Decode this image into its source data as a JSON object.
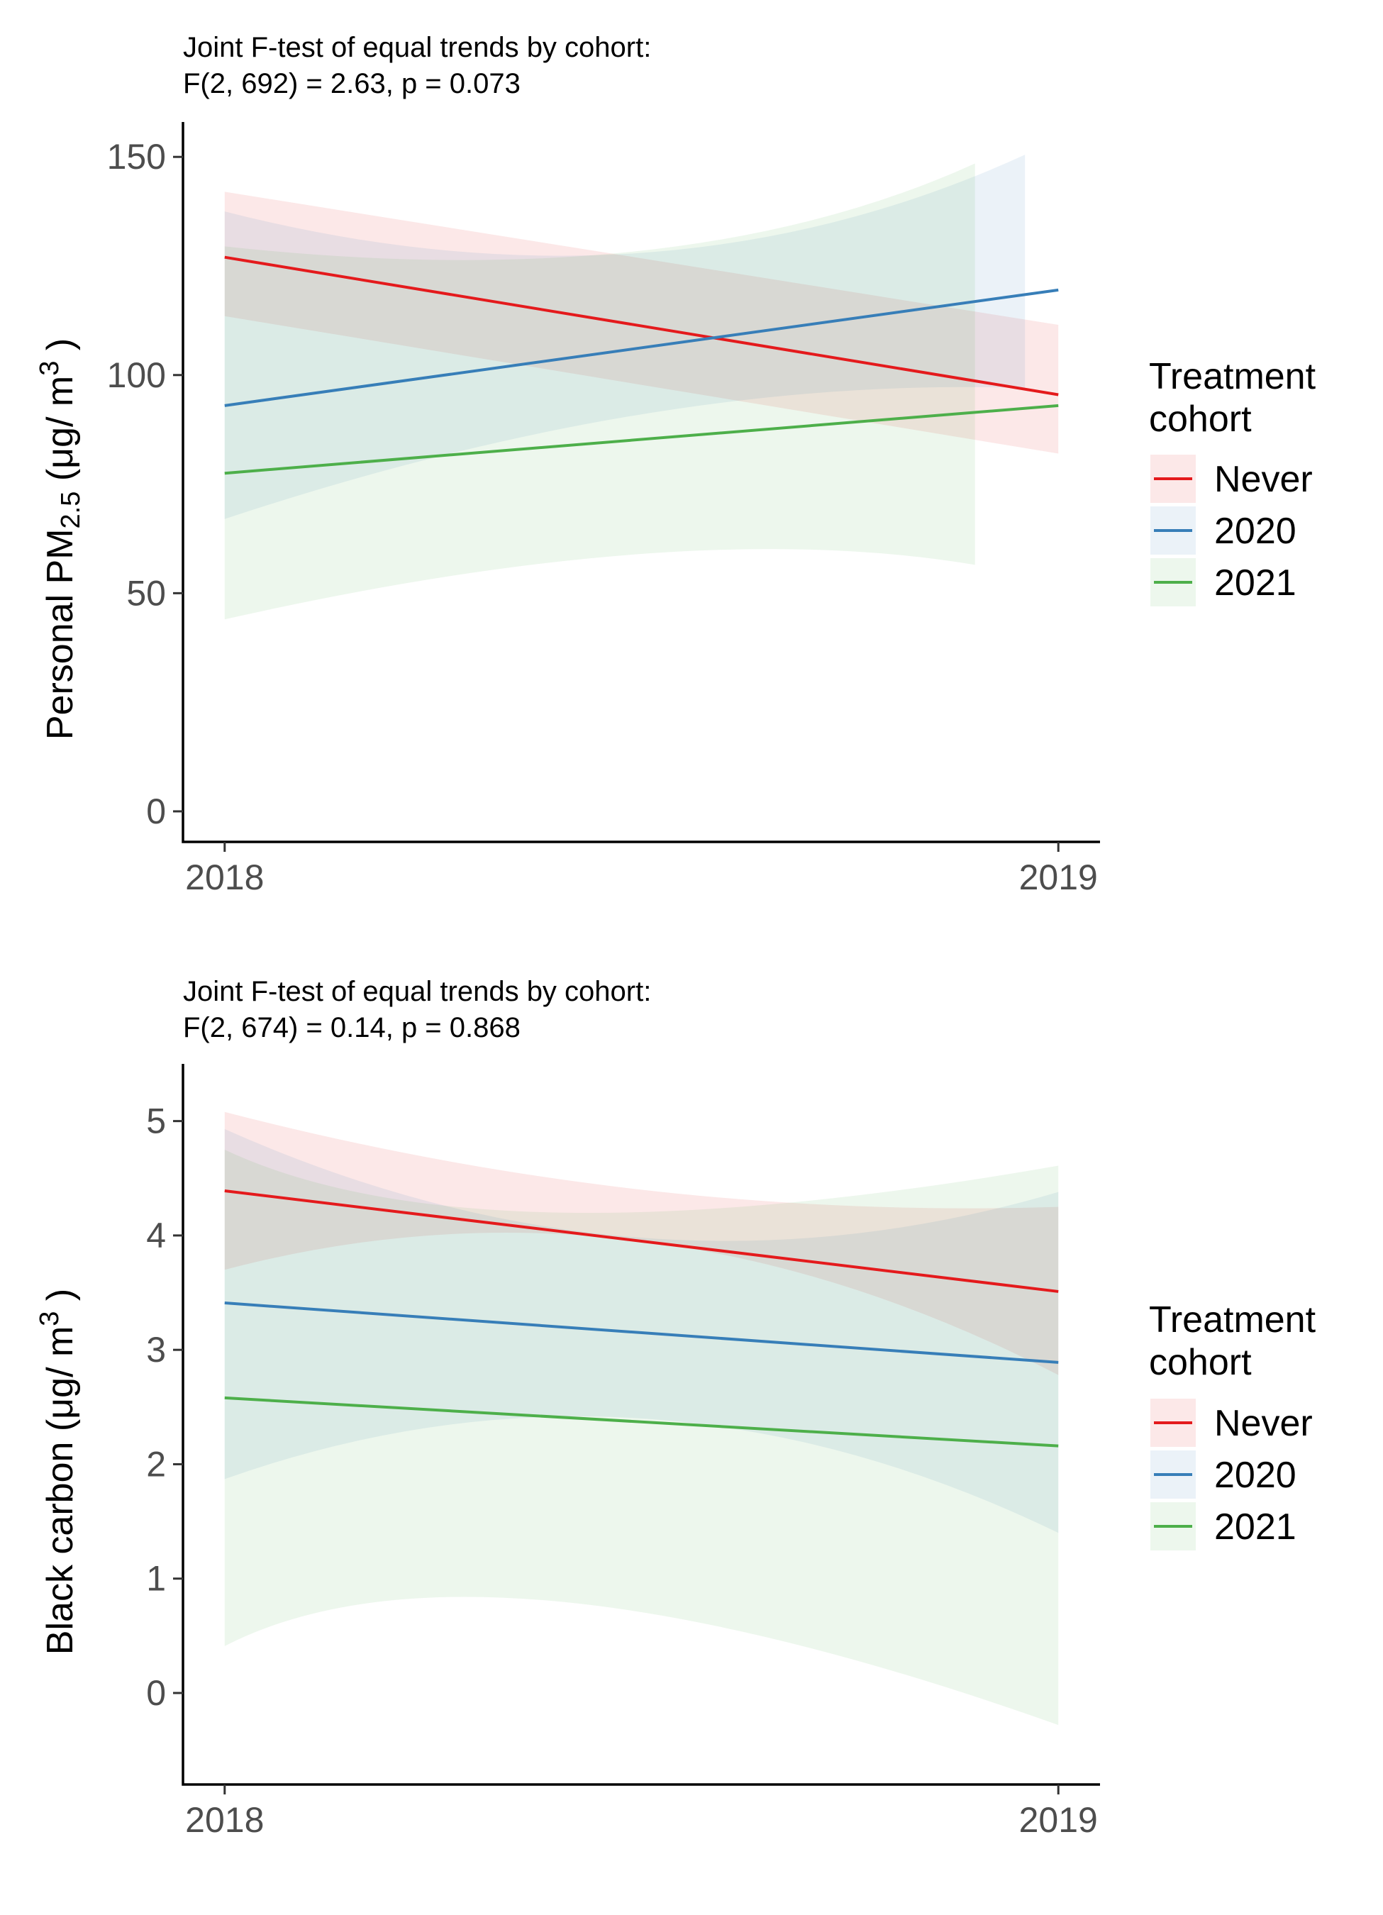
{
  "colors": {
    "Never": "#E41A1C",
    "2020": "#377EB8",
    "2021": "#4DAF4A"
  },
  "legend": {
    "title_line1": "Treatment",
    "title_line2": "cohort",
    "items": [
      "Never",
      "2020",
      "2021"
    ]
  },
  "chart_data": [
    {
      "type": "line",
      "subtitle_line1": "Joint F-test of equal trends by cohort:",
      "subtitle_line2": "F(2, 692) = 2.63, p = 0.073",
      "ylabel_text": "Personal PM",
      "ylabel_sub": "2.5",
      "ylabel_unit": " (μg/ m",
      "ylabel_sup": "3",
      "ylabel_close": " )",
      "x": [
        2018,
        2019
      ],
      "xticks": [
        2018,
        2019
      ],
      "xlim": [
        2017.95,
        2019.05
      ],
      "ylim": [
        -7,
        158
      ],
      "yticks": [
        0,
        50,
        100,
        150
      ],
      "grid": false,
      "legend_position": "right",
      "series": [
        {
          "name": "Never",
          "values": [
            127,
            95.5
          ],
          "band": {
            "x": [
              2018,
              2019
            ],
            "lower": [
              113.5,
              82
            ],
            "upper": [
              142,
              111.5
            ]
          }
        },
        {
          "name": "2020",
          "values": [
            93,
            119.5
          ],
          "band": {
            "x": [
              2018,
              2018.5,
              2018.96
            ],
            "lower": [
              67,
              91,
              97
            ],
            "upper": [
              137.5,
              128,
              150.5
            ]
          }
        },
        {
          "name": "2021",
          "values": [
            77.5,
            93
          ],
          "band": {
            "x": [
              2018,
              2018.5,
              2018.9
            ],
            "lower": [
              44,
              59,
              56.5
            ],
            "upper": [
              129.5,
              128.5,
              148.5
            ]
          }
        }
      ]
    },
    {
      "type": "line",
      "subtitle_line1": "Joint F-test of equal trends by cohort:",
      "subtitle_line2": "F(2, 674) = 0.14, p = 0.868",
      "ylabel_text": "Black carbon",
      "ylabel_sub": "",
      "ylabel_unit": " (μg/ m",
      "ylabel_sup": "3",
      "ylabel_close": " )",
      "x": [
        2018,
        2019
      ],
      "xticks": [
        2018,
        2019
      ],
      "xlim": [
        2017.95,
        2019.05
      ],
      "ylim": [
        -0.8,
        5.5
      ],
      "yticks": [
        0,
        1,
        2,
        3,
        4,
        5
      ],
      "grid": false,
      "legend_position": "right",
      "series": [
        {
          "name": "Never",
          "values": [
            4.39,
            3.51
          ],
          "band": {
            "x": [
              2018,
              2018.5,
              2019
            ],
            "lower": [
              3.7,
              3.95,
              2.78
            ],
            "upper": [
              5.08,
              4.4,
              4.25
            ]
          }
        },
        {
          "name": "2020",
          "values": [
            3.41,
            2.89
          ],
          "band": {
            "x": [
              2018,
              2018.5,
              2019
            ],
            "lower": [
              1.87,
              2.4,
              1.4
            ],
            "upper": [
              4.93,
              3.98,
              4.38
            ]
          }
        },
        {
          "name": "2021",
          "values": [
            2.58,
            2.16
          ],
          "band": {
            "x": [
              2018,
              2018.4,
              2019
            ],
            "lower": [
              0.41,
              0.8,
              -0.28
            ],
            "upper": [
              4.75,
              4.2,
              4.61
            ]
          }
        }
      ]
    }
  ]
}
